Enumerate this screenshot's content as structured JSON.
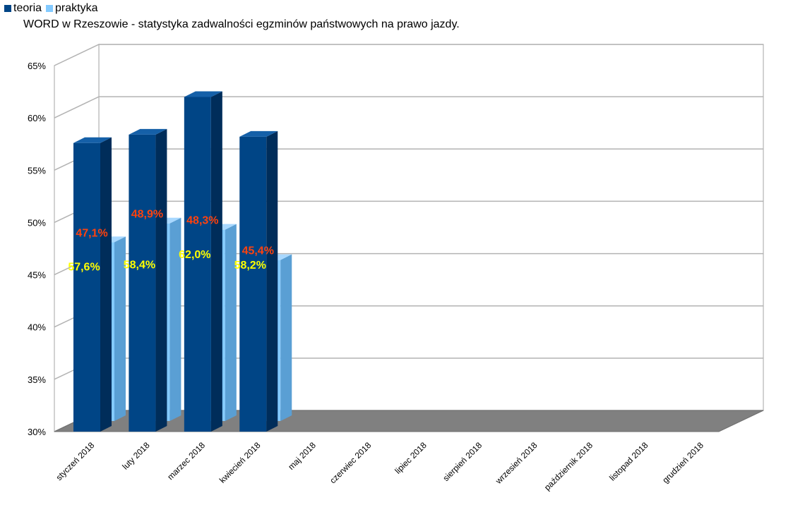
{
  "chart_data": {
    "type": "bar",
    "title": "WORD w Rzeszowie - statystyka zadwalności egzminów państwowych na prawo jazdy.",
    "xlabel": "",
    "ylabel": "",
    "ylim": [
      30,
      65
    ],
    "yticks": [
      "30%",
      "35%",
      "40%",
      "45%",
      "50%",
      "55%",
      "60%",
      "65%"
    ],
    "ytick_values": [
      30,
      35,
      40,
      45,
      50,
      55,
      60,
      65
    ],
    "categories": [
      "styczeń 2018",
      "luty 2018",
      "marzec 2018",
      "kwiecień 2018",
      "maj 2018",
      "czerwiec 2018",
      "lipiec 2018",
      "sierpień 2018",
      "wrzesień 2018",
      "październik 2018",
      "listopad 2018",
      "grudzień 2018"
    ],
    "series": [
      {
        "name": "teoria",
        "color": "#004586",
        "values": [
          57.6,
          58.4,
          62.0,
          58.2,
          null,
          null,
          null,
          null,
          null,
          null,
          null,
          null
        ],
        "labels": [
          "57,6%",
          "58,4%",
          "62,0%",
          "58,2%"
        ],
        "label_color": "#ffff00"
      },
      {
        "name": "praktyka",
        "color": "#83caff",
        "values": [
          47.1,
          48.9,
          48.3,
          45.4,
          null,
          null,
          null,
          null,
          null,
          null,
          null,
          null
        ],
        "labels": [
          "47,1%",
          "48,9%",
          "48,3%",
          "45,4%"
        ],
        "label_color": "#ff420e"
      }
    ],
    "grid": true,
    "legend": "top-left",
    "style": "3d"
  }
}
